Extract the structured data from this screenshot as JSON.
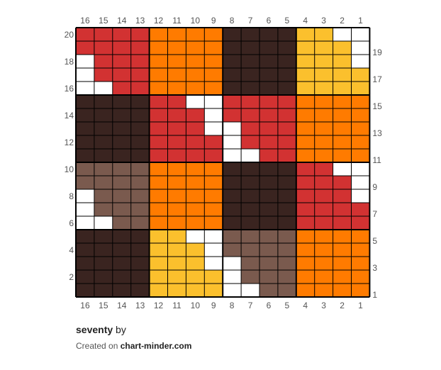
{
  "pattern": {
    "title": "seventy",
    "by_label": "by",
    "credit_prefix": "Created on",
    "credit_site": "chart-minder.com",
    "columns": 16,
    "rows": 20,
    "column_numbers": [
      "16",
      "15",
      "14",
      "13",
      "12",
      "11",
      "10",
      "9",
      "8",
      "7",
      "6",
      "5",
      "4",
      "3",
      "2",
      "1"
    ],
    "row_numbers": [
      "20",
      "19",
      "18",
      "17",
      "16",
      "15",
      "14",
      "13",
      "12",
      "11",
      "10",
      "9",
      "8",
      "7",
      "6",
      "5",
      "4",
      "3",
      "2",
      "1"
    ],
    "palette": {
      "W": "#ffffff",
      "R": "#d23232",
      "O": "#ff7b00",
      "D": "#3a2420",
      "Y": "#fbc02d",
      "B": "#7a5a4e"
    },
    "grid": [
      "RRRROOOODDDDYYWW",
      "RRRROOOODDDDYYYW",
      "WRRROOOODDDDYYYW",
      "WRRROOOODDDDYYYY",
      "WWRROOOODDDDYYYY",
      "DDDDRRWWRRRROOOO",
      "DDDDRRRWRRRROOOO",
      "DDDDRRRWWRRROOOO",
      "DDDDRRRRWRRROOOO",
      "DDDDRRRRWWRROOOO",
      "BBBBOOOODDDDRRWW",
      "BBBBOOOODDDDRRRW",
      "WBBBOOOODDDDRRRW",
      "WBBBOOOODDDDRRRR",
      "WWBBOOOODDDDRRRR",
      "DDDDYYWWBBBBOOOO",
      "DDDDYYYWBBBBOOOO",
      "DDDDYYYWWBBBOOOO",
      "DDDDYYYYWBBBOOOO",
      "DDDDYYYYWWBBOOOO"
    ]
  }
}
